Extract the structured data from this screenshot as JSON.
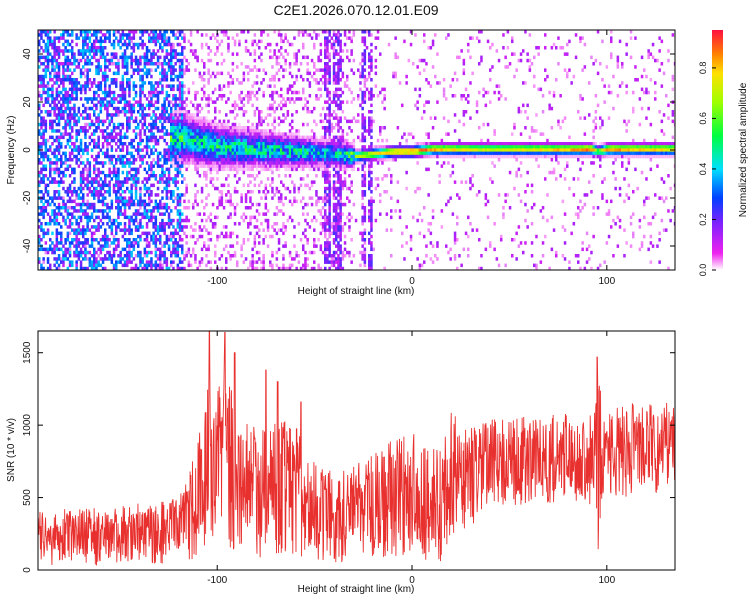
{
  "chart_data": {
    "title": "C2E1.2026.070.12.01.E09",
    "panels": [
      {
        "type": "heatmap",
        "name": "spectrogram",
        "xlabel": "Height of straight line (km)",
        "ylabel": "Frequency (Hz)",
        "xlim": [
          -192,
          135
        ],
        "ylim": [
          -50,
          50
        ],
        "xticks": [
          -100,
          0,
          100
        ],
        "xtick_labels": [
          "-100",
          "0",
          "100"
        ],
        "yticks": [
          -40,
          -20,
          0,
          20,
          40
        ],
        "ytick_labels": [
          "-40",
          "-20",
          "0",
          "20",
          "40"
        ],
        "colorbar": {
          "label": "Normalized spectral amplitude",
          "range": [
            0,
            0.95
          ],
          "ticks": [
            0.0,
            0.2,
            0.4,
            0.6,
            0.8
          ],
          "tick_labels": [
            "0.0",
            "0.2",
            "0.4",
            "0.6",
            "0.8"
          ]
        },
        "carrier_track": {
          "x": [
            -120,
            -100,
            -80,
            -60,
            -40,
            -30,
            -20,
            -10,
            0,
            10,
            20,
            40,
            60,
            80,
            92,
            95,
            100,
            120,
            135
          ],
          "freq": [
            6,
            2,
            1,
            0,
            -1,
            -2,
            -1,
            0,
            0,
            1,
            1,
            1,
            1,
            1,
            1,
            0,
            1,
            1,
            1
          ],
          "amplitude": [
            0.55,
            0.5,
            0.5,
            0.5,
            0.45,
            0.7,
            0.75,
            0.85,
            0.9,
            0.85,
            0.8,
            0.75,
            0.78,
            0.85,
            0.9,
            0.6,
            0.88,
            0.82,
            0.8
          ]
        },
        "noise_regions": [
          {
            "x_from": -192,
            "x_to": -118,
            "level": 0.22
          },
          {
            "x_from": -118,
            "x_to": -30,
            "level": 0.06
          },
          {
            "x_from": -30,
            "x_to": 135,
            "level": 0.02
          }
        ],
        "vertical_streaks_x": [
          -44,
          -40,
          -38,
          -25,
          -22
        ]
      },
      {
        "type": "line",
        "name": "snr",
        "color": "#e8312f",
        "xlabel": "Height of straight line (km)",
        "ylabel": "SNR (10 * v/v)",
        "xlim": [
          -192,
          135
        ],
        "ylim": [
          0,
          1650
        ],
        "xticks": [
          -100,
          0,
          100
        ],
        "xtick_labels": [
          "-100",
          "0",
          "100"
        ],
        "yticks": [
          0,
          500,
          1000,
          1500
        ],
        "ytick_labels": [
          "0",
          "500",
          "1000",
          "1500"
        ],
        "envelope": {
          "x": [
            -192,
            -160,
            -140,
            -125,
            -115,
            -110,
            -105,
            -100,
            -97,
            -90,
            -80,
            -70,
            -60,
            -50,
            -40,
            -30,
            -20,
            -10,
            0,
            5,
            10,
            15,
            20,
            30,
            40,
            60,
            80,
            90,
            94,
            96,
            98,
            100,
            110,
            120,
            135
          ],
          "lower": [
            20,
            30,
            40,
            40,
            60,
            80,
            100,
            150,
            130,
            100,
            80,
            100,
            90,
            60,
            50,
            40,
            70,
            50,
            100,
            50,
            30,
            60,
            200,
            300,
            420,
            450,
            460,
            460,
            200,
            40,
            300,
            470,
            500,
            520,
            560
          ],
          "upper": [
            420,
            430,
            460,
            480,
            650,
            950,
            1250,
            1300,
            1650,
            1100,
            1000,
            1050,
            1000,
            750,
            680,
            720,
            800,
            900,
            960,
            900,
            830,
            880,
            1120,
            1000,
            1040,
            1060,
            1080,
            1050,
            1100,
            1470,
            1080,
            1100,
            1150,
            1150,
            1170
          ]
        },
        "peaks": [
          {
            "x": -104,
            "y": 1650
          },
          {
            "x": -96,
            "y": 1640
          },
          {
            "x": -91,
            "y": 1500
          },
          {
            "x": -75,
            "y": 1380
          },
          {
            "x": -69,
            "y": 1300
          },
          {
            "x": -57,
            "y": 1160
          },
          {
            "x": 95,
            "y": 1470
          }
        ]
      }
    ]
  }
}
